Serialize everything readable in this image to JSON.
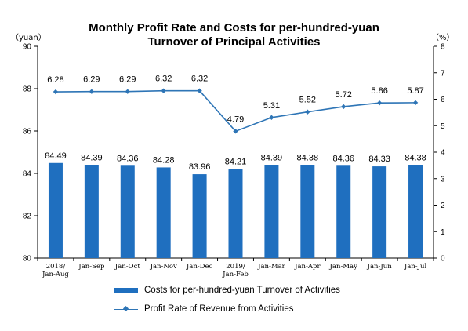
{
  "chart_data": {
    "type": "bar+line",
    "title_line1": "Monthly Profit Rate and Costs for per-hundred-yuan",
    "title_line2": "Turnover of Principal Activities",
    "unit_left": "（yuan）",
    "unit_right": "（%）",
    "categories": [
      [
        "2018/",
        "Jan-Aug"
      ],
      [
        "Jan-Sep"
      ],
      [
        "Jan-Oct"
      ],
      [
        "Jan-Nov"
      ],
      [
        "Jan-Dec"
      ],
      [
        "2019/",
        "Jan-Feb"
      ],
      [
        "Jan-Mar"
      ],
      [
        "Jan-Apr"
      ],
      [
        "Jan-May"
      ],
      [
        "Jan-Jun"
      ],
      [
        "Jan-Jul"
      ]
    ],
    "bar_series": {
      "name": "Costs for per-hundred-yuan Turnover of  Activities",
      "values": [
        84.49,
        84.39,
        84.36,
        84.28,
        83.96,
        84.21,
        84.39,
        84.38,
        84.36,
        84.33,
        84.38
      ],
      "labels": [
        "84.49",
        "84.39",
        "84.36",
        "84.28",
        "83.96",
        "84.21",
        "84.39",
        "84.38",
        "84.36",
        "84.33",
        "84.38"
      ]
    },
    "line_series": {
      "name": "Profit Rate of Revenue from Activities",
      "values": [
        6.28,
        6.29,
        6.29,
        6.32,
        6.32,
        4.79,
        5.31,
        5.52,
        5.72,
        5.86,
        5.87
      ],
      "labels": [
        "6.28",
        "6.29",
        "6.29",
        "6.32",
        "6.32",
        "4.79",
        "5.31",
        "5.52",
        "5.72",
        "5.86",
        "5.87"
      ]
    },
    "y_left": {
      "min": 80,
      "max": 90,
      "ticks": [
        "80",
        "82",
        "84",
        "86",
        "88",
        "90"
      ]
    },
    "y_right": {
      "min": 0,
      "max": 8,
      "ticks": [
        "0",
        "1",
        "2",
        "3",
        "4",
        "5",
        "6",
        "7",
        "8"
      ]
    },
    "grid": false,
    "legend_position": "bottom",
    "colors": {
      "bar": "#1F6FBF",
      "line": "#2E75B6"
    }
  }
}
